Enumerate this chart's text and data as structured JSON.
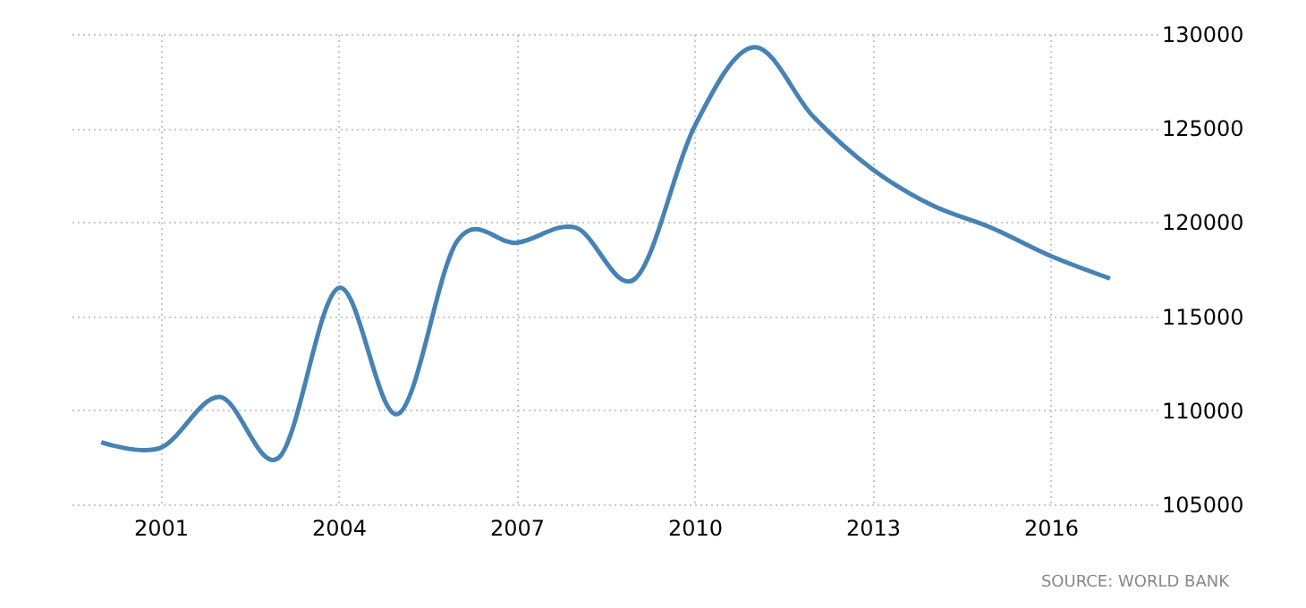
{
  "chart_data": {
    "type": "line",
    "x": [
      2000,
      2001,
      2002,
      2003,
      2004,
      2005,
      2006,
      2007,
      2008,
      2009,
      2010,
      2011,
      2012,
      2013,
      2014,
      2015,
      2016,
      2017
    ],
    "series": [
      {
        "color": "#4682b4",
        "values": [
          108300,
          108000,
          110700,
          107500,
          116500,
          109800,
          119000,
          118900,
          119700,
          117000,
          125100,
          129300,
          125600,
          122800,
          120900,
          119700,
          118200,
          117000
        ]
      }
    ],
    "xlim": [
      1999.5,
      2017.8
    ],
    "xticks": [
      2001,
      2004,
      2007,
      2010,
      2013,
      2016
    ],
    "ylim": [
      105000,
      130000
    ],
    "yticks": [
      105000,
      110000,
      115000,
      120000,
      125000,
      130000
    ],
    "grid": true,
    "marker": "none",
    "line_style": "solid",
    "annotations": [
      "SOURCE: WORLD BANK"
    ]
  }
}
